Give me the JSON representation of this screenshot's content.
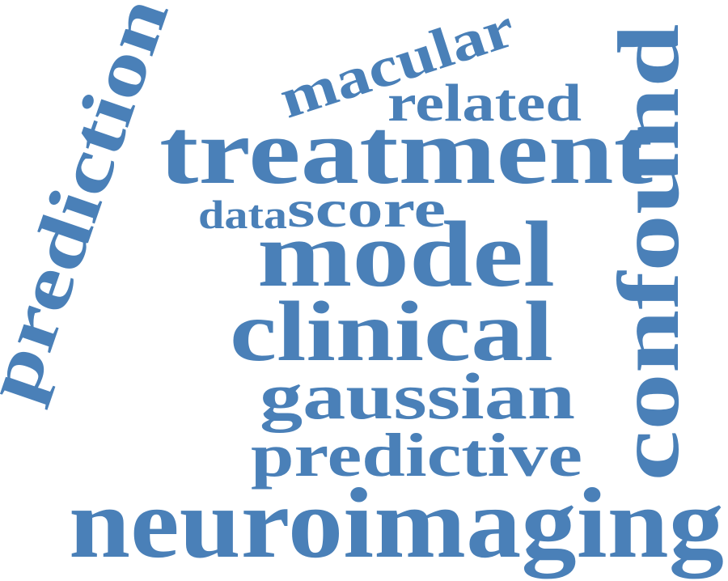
{
  "color": "#4a80b8",
  "words": [
    {
      "text": "neuroimaging"
    },
    {
      "text": "confound"
    },
    {
      "text": "prediction"
    },
    {
      "text": "treatment"
    },
    {
      "text": "model"
    },
    {
      "text": "clinical"
    },
    {
      "text": "gaussian"
    },
    {
      "text": "predictive"
    },
    {
      "text": "macular"
    },
    {
      "text": "related"
    },
    {
      "text": "score"
    },
    {
      "text": "data"
    }
  ]
}
